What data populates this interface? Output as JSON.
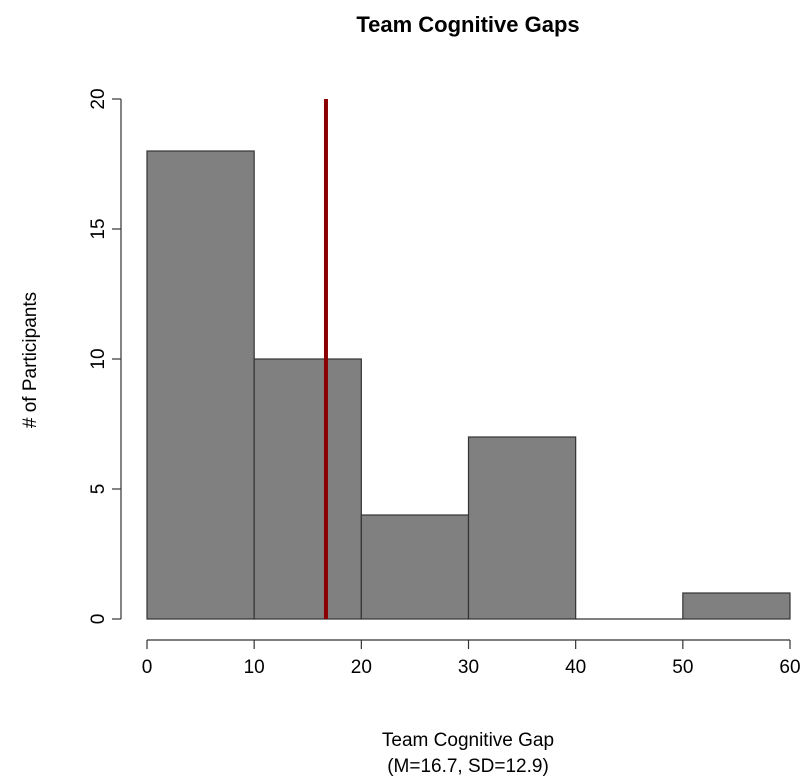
{
  "chart_data": {
    "type": "bar",
    "title": "Team Cognitive Gaps",
    "xlabel": "Team Cognitive Gap",
    "xlabel_line2": "(M=16.7, SD=12.9)",
    "ylabel": "# of Participants",
    "bins": [
      {
        "from": 0,
        "to": 10,
        "count": 18
      },
      {
        "from": 10,
        "to": 20,
        "count": 10
      },
      {
        "from": 20,
        "to": 30,
        "count": 4
      },
      {
        "from": 30,
        "to": 40,
        "count": 7
      },
      {
        "from": 40,
        "to": 50,
        "count": 0
      },
      {
        "from": 50,
        "to": 60,
        "count": 1
      }
    ],
    "xlim": [
      0,
      60
    ],
    "ylim": [
      0,
      20
    ],
    "xticks": [
      0,
      10,
      20,
      30,
      40,
      50,
      60
    ],
    "yticks": [
      0,
      5,
      10,
      15,
      20
    ],
    "mean_line": {
      "x": 16.7,
      "y_top": 20,
      "color": "#8b0000"
    },
    "bar_color": "#808080",
    "bar_edge_color": "#333333",
    "grid": false
  }
}
